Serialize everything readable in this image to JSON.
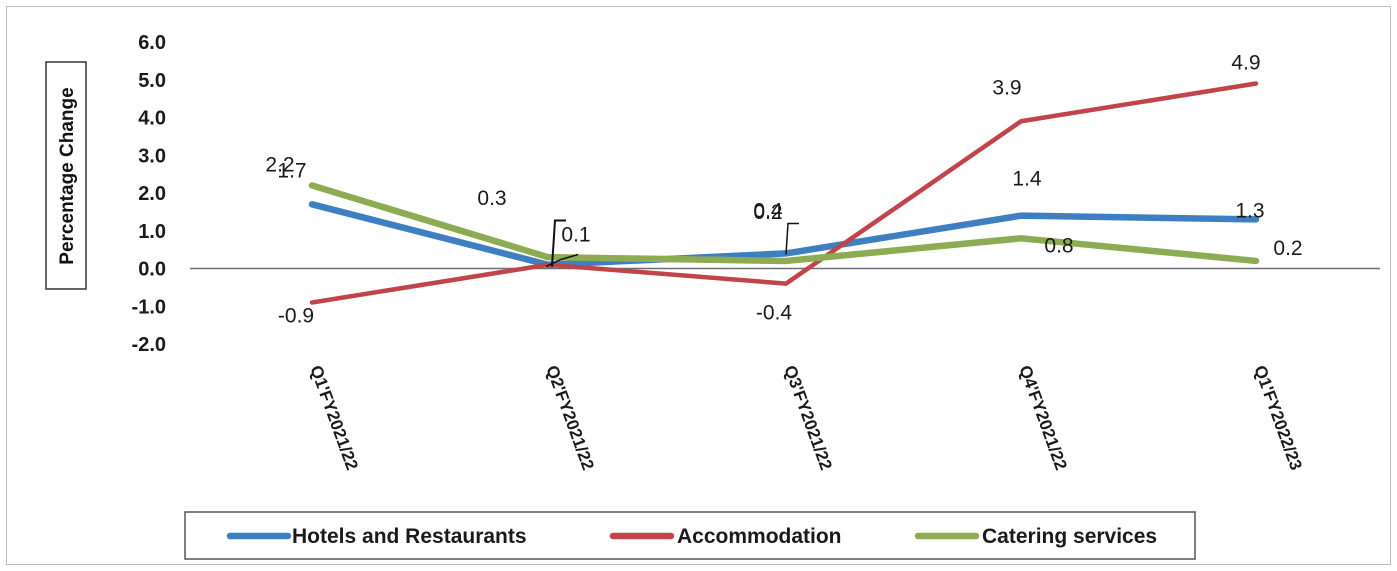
{
  "chart_data": {
    "type": "line",
    "ylabel": "Percentage Change",
    "xlabel": "",
    "ylim": [
      -2.0,
      6.0
    ],
    "yticks": [
      "6.0",
      "5.0",
      "4.0",
      "3.0",
      "2.0",
      "1.0",
      "0.0",
      "-1.0",
      "-2.0"
    ],
    "categories": [
      "Q1'FY2021/22",
      "Q2'FY2021/22",
      "Q3'FY2021/22",
      "Q4'FY2021/22",
      "Q1'FY2022/23"
    ],
    "legend_position": "bottom",
    "series": [
      {
        "name": "Hotels and Restaurants",
        "color": "#3d7fc1",
        "values": [
          1.7,
          0.1,
          0.4,
          1.4,
          1.3
        ],
        "labels": [
          "1.7",
          "0.1",
          "0.4",
          "1.4",
          "1.3"
        ]
      },
      {
        "name": "Accommodation",
        "color": "#c0444a",
        "values": [
          -0.9,
          0.1,
          -0.4,
          3.9,
          4.9
        ],
        "labels": [
          "-0.9",
          "0.1",
          "-0.4",
          "3.9",
          "4.9"
        ]
      },
      {
        "name": "Catering services",
        "color": "#8cab52",
        "values": [
          2.2,
          0.3,
          0.2,
          0.8,
          0.2
        ],
        "labels": [
          "2.2",
          "0.3",
          "0.2",
          "0.8",
          "0.2"
        ]
      }
    ]
  }
}
